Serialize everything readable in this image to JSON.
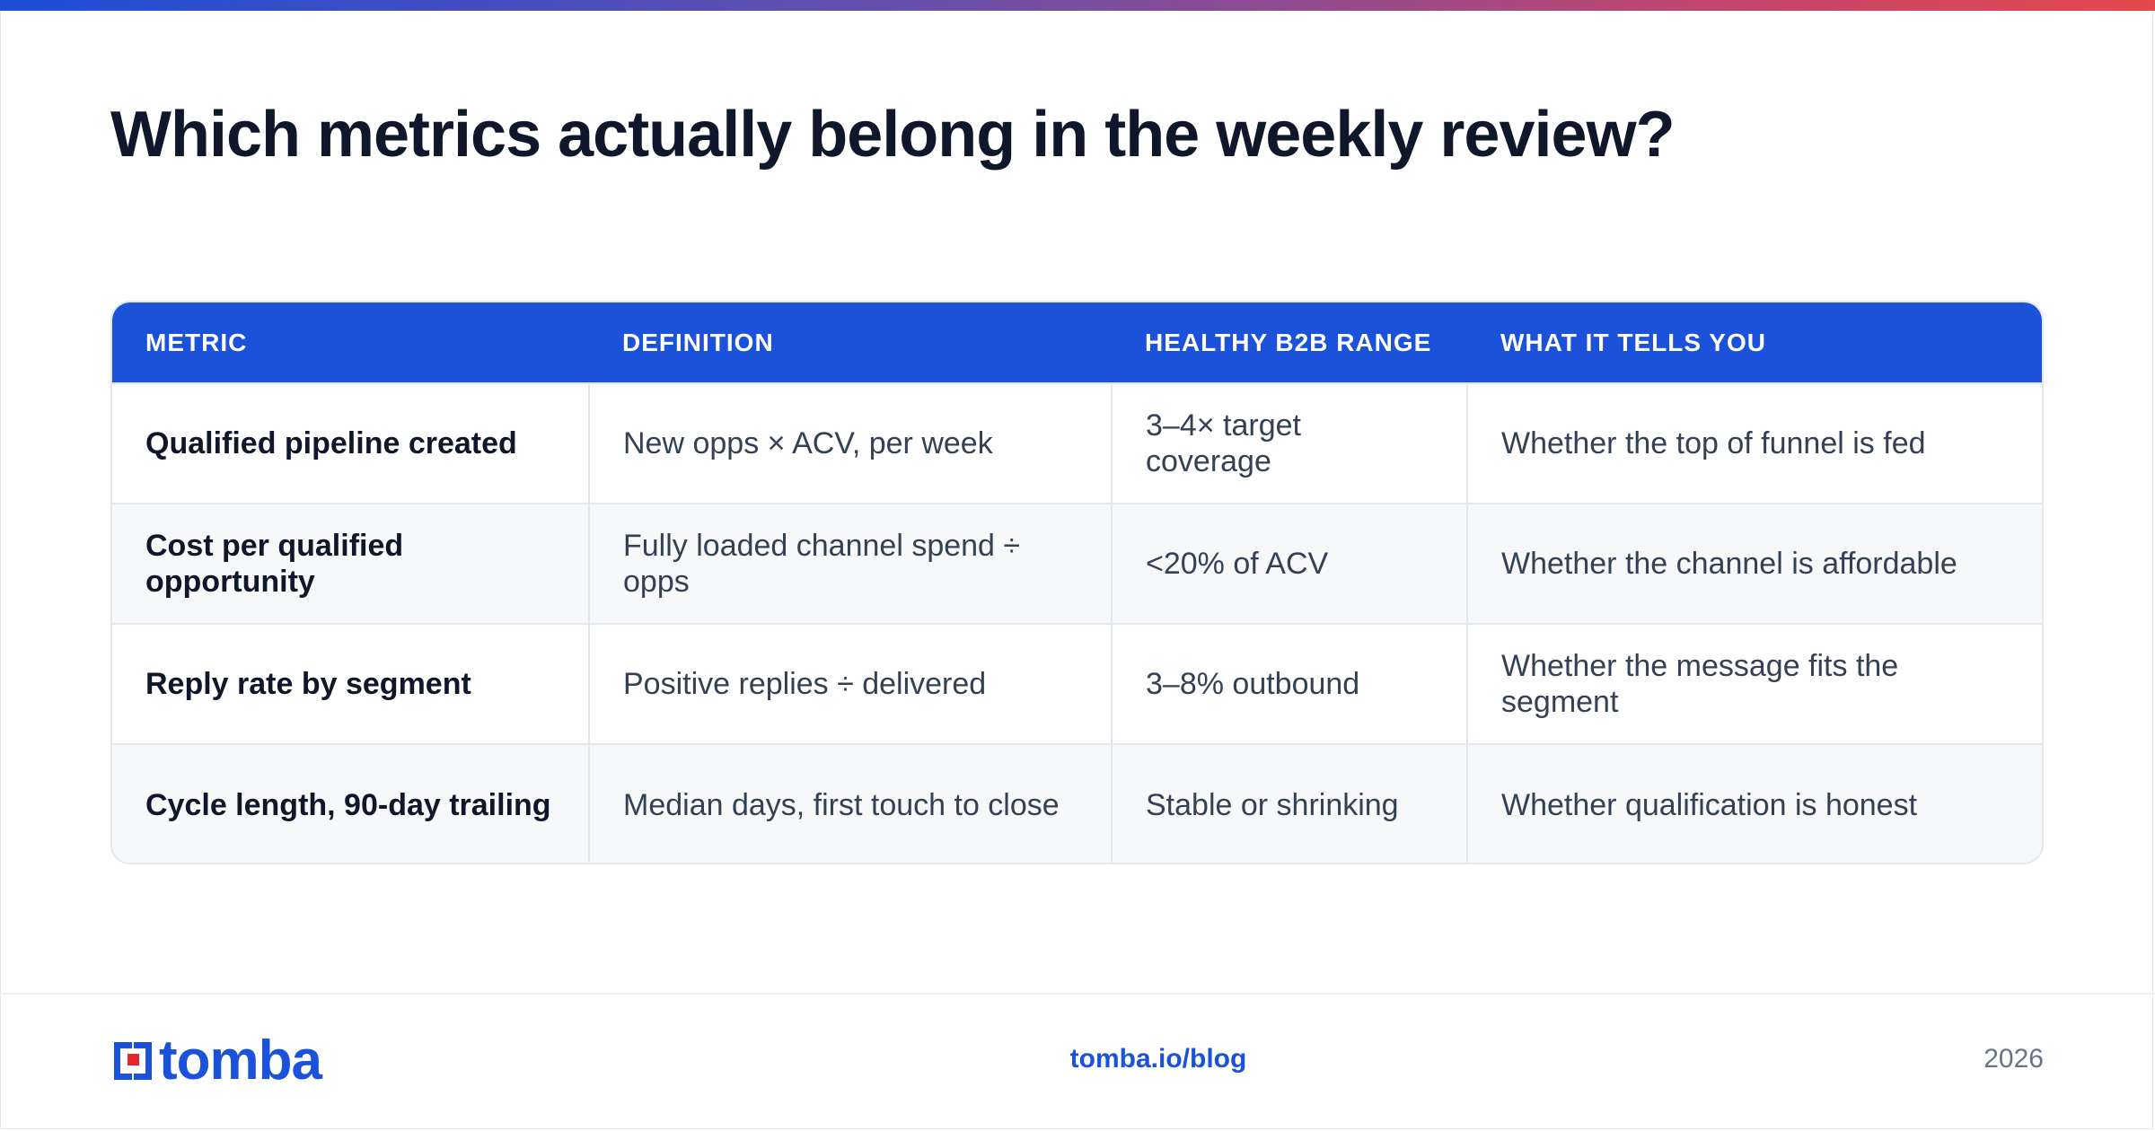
{
  "title": "Which metrics actually belong in the weekly review?",
  "table": {
    "headers": [
      "METRIC",
      "DEFINITION",
      "HEALTHY B2B RANGE",
      "WHAT IT TELLS YOU"
    ],
    "rows": [
      [
        "Qualified pipeline created",
        "New opps × ACV, per week",
        "3–4× target coverage",
        "Whether the top of funnel is fed"
      ],
      [
        "Cost per qualified opportunity",
        "Fully loaded channel spend ÷ opps",
        "<20% of ACV",
        "Whether the channel is affordable"
      ],
      [
        "Reply rate by segment",
        "Positive replies ÷ delivered",
        "3–8% outbound",
        "Whether the message fits the segment"
      ],
      [
        "Cycle length, 90-day trailing",
        "Median days, first touch to close",
        "Stable or shrinking",
        "Whether qualification is honest"
      ]
    ]
  },
  "footer": {
    "brand": "tomba",
    "link": "tomba.io/blog",
    "year": "2026"
  },
  "colors": {
    "accent": "#1b52d9",
    "title": "#0f172a",
    "body_text": "#334155",
    "logo_red": "#e5272d"
  },
  "icons": {
    "logo_mark": "tomba-logo-icon"
  }
}
